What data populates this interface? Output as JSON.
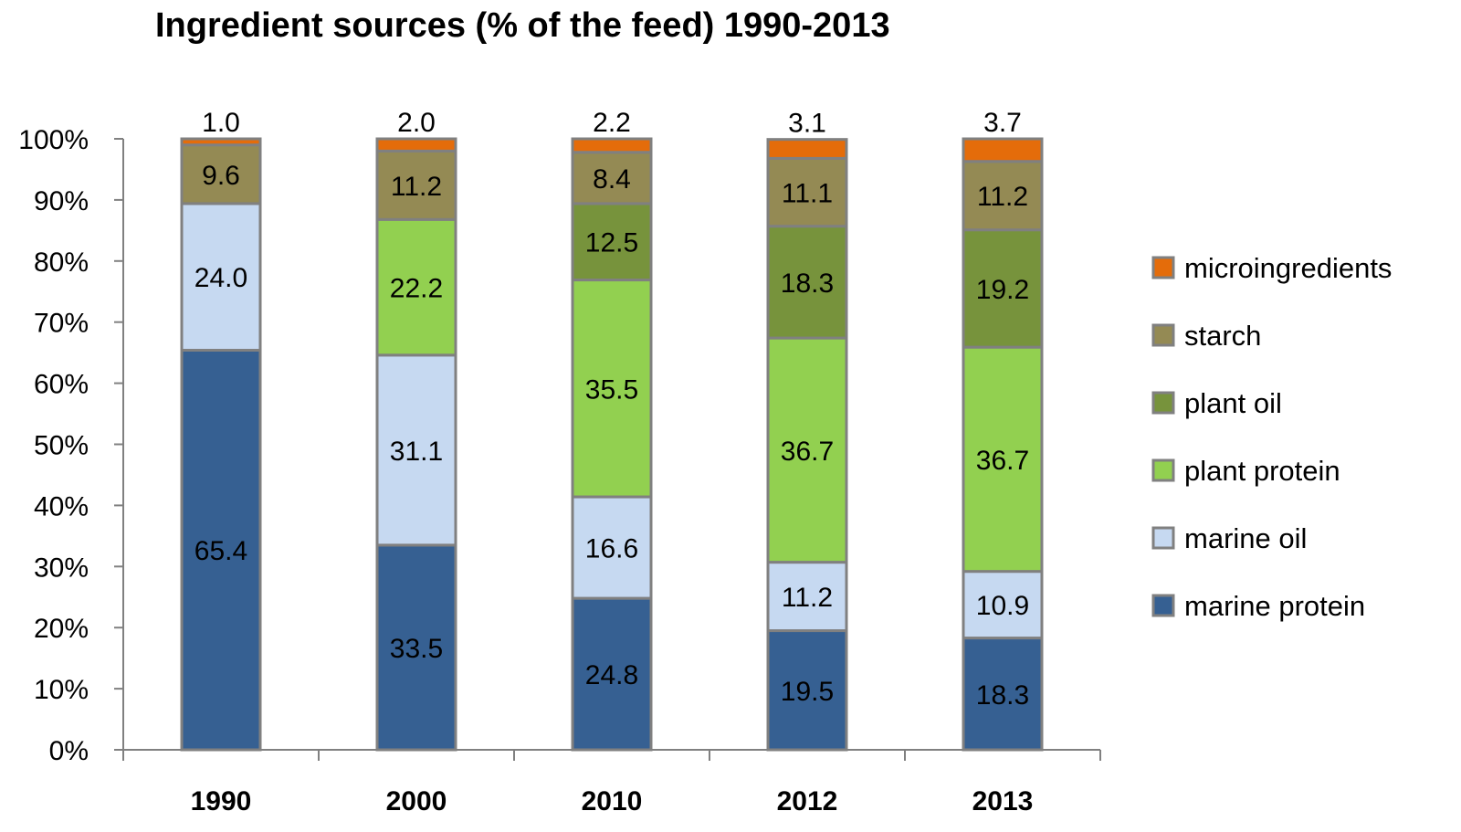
{
  "chart_data": {
    "type": "bar",
    "stacked": true,
    "title": "Ingredient sources (% of the feed) 1990-2013",
    "xlabel": "",
    "ylabel": "",
    "ylim": [
      0,
      100
    ],
    "y_ticks": [
      "0%",
      "10%",
      "20%",
      "30%",
      "40%",
      "50%",
      "60%",
      "70%",
      "80%",
      "90%",
      "100%"
    ],
    "categories": [
      "1990",
      "2000",
      "2010",
      "2012",
      "2013"
    ],
    "grid": false,
    "legend_position": "right",
    "series": [
      {
        "name": "marine protein",
        "color": "#366092",
        "values": [
          65.4,
          33.5,
          24.8,
          19.5,
          18.3
        ]
      },
      {
        "name": "marine oil",
        "color": "#c6d9f1",
        "values": [
          24.0,
          31.1,
          16.6,
          11.2,
          10.9
        ]
      },
      {
        "name": "plant protein",
        "color": "#92d050",
        "values": [
          0,
          22.2,
          35.5,
          36.7,
          36.7
        ]
      },
      {
        "name": "plant oil",
        "color": "#77933c",
        "values": [
          0,
          0,
          12.5,
          18.3,
          19.2
        ]
      },
      {
        "name": "starch",
        "color": "#948a54",
        "values": [
          9.6,
          11.2,
          8.4,
          11.1,
          11.2
        ]
      },
      {
        "name": "microingredients",
        "color": "#e46c0a",
        "values": [
          1.0,
          2.0,
          2.2,
          3.1,
          3.7
        ]
      }
    ],
    "data_labels": [
      [
        "65.4",
        "33.5",
        "24.8",
        "19.5",
        "18.3"
      ],
      [
        "24.0",
        "31.1",
        "16.6",
        "11.2",
        "10.9"
      ],
      [
        "",
        "22.2",
        "35.5",
        "36.7",
        "36.7"
      ],
      [
        "",
        "",
        "12.5",
        "18.3",
        "19.2"
      ],
      [
        "9.6",
        "11.2",
        "8.4",
        "11.1",
        "11.2"
      ],
      [
        "1.0",
        "2.0",
        "2.2",
        "3.1",
        "3.7"
      ]
    ]
  }
}
